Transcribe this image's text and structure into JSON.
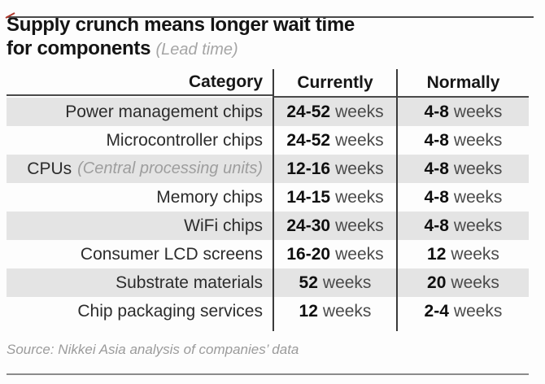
{
  "accent": {
    "red_mark_color": "#b03a2e"
  },
  "title": {
    "line1": "Supply crunch means longer wait time",
    "line2": "for components",
    "subtitle": "(Lead time)"
  },
  "table": {
    "headers": {
      "category": "Category",
      "currently": "Currently",
      "normally": "Normally"
    },
    "unit": "weeks",
    "rows": [
      {
        "category": "Power management chips",
        "currently": "24-52",
        "currently_unit": "weeks",
        "normally": "4-8",
        "normally_unit": "weeks"
      },
      {
        "category": "Microcontroller chips",
        "currently": "24-52",
        "currently_unit": "weeks",
        "normally": "4-8",
        "normally_unit": "weeks"
      },
      {
        "category": "CPUs",
        "note": "(Central processing units)",
        "currently": "12-16",
        "currently_unit": "weeks",
        "normally": "4-8",
        "normally_unit": "weeks"
      },
      {
        "category": "Memory chips",
        "currently": "14-15",
        "currently_unit": "weeks",
        "normally": "4-8",
        "normally_unit": "weeks"
      },
      {
        "category": "WiFi chips",
        "currently": "24-30",
        "currently_unit": "weeks",
        "normally": "4-8",
        "normally_unit": "weeks"
      },
      {
        "category": "Consumer LCD screens",
        "currently": "16-20",
        "currently_unit": "weeks",
        "normally": "12",
        "normally_unit": "weeks"
      },
      {
        "category": "Substrate materials",
        "currently": "52",
        "currently_unit": "weeks",
        "normally": "20",
        "normally_unit": "weeks"
      },
      {
        "category": "Chip packaging services",
        "currently": "12",
        "currently_unit": "weeks",
        "normally": "2-4",
        "normally_unit": "weeks"
      }
    ]
  },
  "source": "Source: Nikkei Asia analysis of companies’ data",
  "chart_data": {
    "type": "table",
    "title": "Supply crunch means longer wait time for components (Lead time)",
    "columns": [
      "Category",
      "Currently",
      "Normally"
    ],
    "rows": [
      [
        "Power management chips",
        "24-52 weeks",
        "4-8 weeks"
      ],
      [
        "Microcontroller chips",
        "24-52 weeks",
        "4-8 weeks"
      ],
      [
        "CPUs (Central processing units)",
        "12-16 weeks",
        "4-8 weeks"
      ],
      [
        "Memory chips",
        "14-15 weeks",
        "4-8 weeks"
      ],
      [
        "WiFi chips",
        "24-30 weeks",
        "4-8 weeks"
      ],
      [
        "Consumer LCD screens",
        "16-20 weeks",
        "12 weeks"
      ],
      [
        "Substrate materials",
        "52 weeks",
        "20 weeks"
      ],
      [
        "Chip packaging services",
        "12 weeks",
        "2-4 weeks"
      ]
    ],
    "source": "Source: Nikkei Asia analysis of companies’ data"
  }
}
